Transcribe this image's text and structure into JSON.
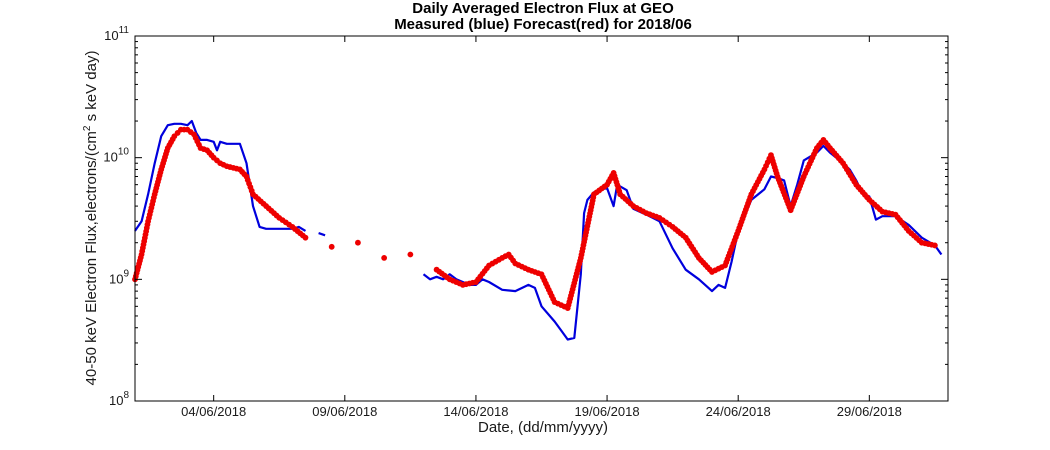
{
  "chart_data": {
    "type": "line",
    "title": "Daily Averaged Electron Flux at GEO",
    "subtitle": "Measured (blue) Forecast(red) for 2018/06",
    "xlabel": "Date, (dd/mm/yyyy)",
    "ylabel": "40-50 keV Electron Flux,electrons/(cm",
    "ylabel_superscript": "2",
    "ylabel_suffix": " s keV day)",
    "y_scale": "log",
    "ylim": [
      100000000.0,
      100000000000.0
    ],
    "xlim": [
      "2018-06-01",
      "2018-07-02"
    ],
    "xticks": [
      {
        "date": "2018-06-04",
        "label": "04/06/2018"
      },
      {
        "date": "2018-06-09",
        "label": "09/06/2018"
      },
      {
        "date": "2018-06-14",
        "label": "14/06/2018"
      },
      {
        "date": "2018-06-19",
        "label": "19/06/2018"
      },
      {
        "date": "2018-06-24",
        "label": "24/06/2018"
      },
      {
        "date": "2018-06-29",
        "label": "29/06/2018"
      }
    ],
    "yticks": [
      {
        "value": 100000000.0,
        "base": "10",
        "exp": "8"
      },
      {
        "value": 1000000000.0,
        "base": "10",
        "exp": "9"
      },
      {
        "value": 10000000000.0,
        "base": "10",
        "exp": "10"
      },
      {
        "value": 100000000000.0,
        "base": "10",
        "exp": "11"
      }
    ],
    "grid": false,
    "series": [
      {
        "name": "Measured",
        "color": "#0000dd",
        "style": "line",
        "segments": [
          [
            [
              "2018-06-01 00:00",
              2500000000.0
            ],
            [
              "2018-06-01 06:00",
              3000000000.0
            ],
            [
              "2018-06-01 12:00",
              5000000000.0
            ],
            [
              "2018-06-01 18:00",
              9000000000.0
            ],
            [
              "2018-06-02 00:00",
              15000000000.0
            ],
            [
              "2018-06-02 06:00",
              18500000000.0
            ],
            [
              "2018-06-02 12:00",
              19000000000.0
            ],
            [
              "2018-06-02 18:00",
              19000000000.0
            ],
            [
              "2018-06-03 00:00",
              18500000000.0
            ],
            [
              "2018-06-03 04:00",
              20000000000.0
            ],
            [
              "2018-06-03 08:00",
              16000000000.0
            ],
            [
              "2018-06-03 12:00",
              14000000000.0
            ],
            [
              "2018-06-03 18:00",
              14000000000.0
            ],
            [
              "2018-06-04 00:00",
              13500000000.0
            ],
            [
              "2018-06-04 03:00",
              11500000000.0
            ],
            [
              "2018-06-04 06:00",
              13500000000.0
            ],
            [
              "2018-06-04 12:00",
              13000000000.0
            ],
            [
              "2018-06-05 00:00",
              13000000000.0
            ],
            [
              "2018-06-05 06:00",
              9000000000.0
            ],
            [
              "2018-06-05 12:00",
              4000000000.0
            ],
            [
              "2018-06-05 18:00",
              2700000000.0
            ],
            [
              "2018-06-06 00:00",
              2600000000.0
            ],
            [
              "2018-06-06 12:00",
              2600000000.0
            ],
            [
              "2018-06-07 00:00",
              2600000000.0
            ],
            [
              "2018-06-07 06:00",
              2700000000.0
            ],
            [
              "2018-06-07 12:00",
              2500000000.0
            ]
          ],
          [
            [
              "2018-06-08 00:00",
              2400000000.0
            ],
            [
              "2018-06-08 06:00",
              2300000000.0
            ]
          ],
          [
            [
              "2018-06-12 00:00",
              1100000000.0
            ],
            [
              "2018-06-12 06:00",
              1000000000.0
            ],
            [
              "2018-06-12 12:00",
              1050000000.0
            ],
            [
              "2018-06-12 18:00",
              1000000000.0
            ],
            [
              "2018-06-13 00:00",
              1100000000.0
            ],
            [
              "2018-06-13 06:00",
              1000000000.0
            ],
            [
              "2018-06-13 12:00",
              950000000.0
            ],
            [
              "2018-06-13 18:00",
              900000000.0
            ],
            [
              "2018-06-14 00:00",
              900000000.0
            ],
            [
              "2018-06-14 06:00",
              1000000000.0
            ],
            [
              "2018-06-14 12:00",
              950000000.0
            ],
            [
              "2018-06-15 00:00",
              820000000.0
            ],
            [
              "2018-06-15 12:00",
              800000000.0
            ],
            [
              "2018-06-16 00:00",
              900000000.0
            ],
            [
              "2018-06-16 06:00",
              850000000.0
            ],
            [
              "2018-06-16 12:00",
              600000000.0
            ],
            [
              "2018-06-17 00:00",
              450000000.0
            ],
            [
              "2018-06-17 06:00",
              380000000.0
            ],
            [
              "2018-06-17 12:00",
              320000000.0
            ],
            [
              "2018-06-17 18:00",
              330000000.0
            ],
            [
              "2018-06-18 00:00",
              1100000000.0
            ],
            [
              "2018-06-18 03:00",
              3500000000.0
            ],
            [
              "2018-06-18 06:00",
              4500000000.0
            ],
            [
              "2018-06-18 12:00",
              5200000000.0
            ],
            [
              "2018-06-18 18:00",
              5500000000.0
            ],
            [
              "2018-06-19 00:00",
              5600000000.0
            ],
            [
              "2018-06-19 06:00",
              4000000000.0
            ],
            [
              "2018-06-19 09:00",
              5800000000.0
            ],
            [
              "2018-06-19 12:00",
              5800000000.0
            ],
            [
              "2018-06-19 18:00",
              5400000000.0
            ],
            [
              "2018-06-20 00:00",
              3800000000.0
            ],
            [
              "2018-06-20 12:00",
              3400000000.0
            ],
            [
              "2018-06-21 00:00",
              3000000000.0
            ],
            [
              "2018-06-21 12:00",
              1800000000.0
            ],
            [
              "2018-06-22 00:00",
              1200000000.0
            ],
            [
              "2018-06-22 12:00",
              1000000000.0
            ],
            [
              "2018-06-23 00:00",
              800000000.0
            ],
            [
              "2018-06-23 06:00",
              900000000.0
            ],
            [
              "2018-06-23 12:00",
              850000000.0
            ],
            [
              "2018-06-23 18:00",
              1400000000.0
            ],
            [
              "2018-06-24 00:00",
              2500000000.0
            ],
            [
              "2018-06-24 12:00",
              4500000000.0
            ],
            [
              "2018-06-25 00:00",
              5500000000.0
            ],
            [
              "2018-06-25 06:00",
              7000000000.0
            ],
            [
              "2018-06-25 12:00",
              6800000000.0
            ],
            [
              "2018-06-25 18:00",
              6500000000.0
            ],
            [
              "2018-06-26 00:00",
              4000000000.0
            ],
            [
              "2018-06-26 06:00",
              6000000000.0
            ],
            [
              "2018-06-26 12:00",
              9500000000.0
            ],
            [
              "2018-06-27 00:00",
              11000000000.0
            ],
            [
              "2018-06-27 06:00",
              12500000000.0
            ],
            [
              "2018-06-27 12:00",
              11000000000.0
            ],
            [
              "2018-06-28 00:00",
              9000000000.0
            ],
            [
              "2018-06-28 06:00",
              8000000000.0
            ],
            [
              "2018-06-28 12:00",
              6500000000.0
            ],
            [
              "2018-06-28 18:00",
              5000000000.0
            ],
            [
              "2018-06-29 00:00",
              4800000000.0
            ],
            [
              "2018-06-29 06:00",
              3100000000.0
            ],
            [
              "2018-06-29 12:00",
              3300000000.0
            ],
            [
              "2018-06-30 00:00",
              3300000000.0
            ],
            [
              "2018-06-30 12:00",
              2800000000.0
            ],
            [
              "2018-07-01 00:00",
              2200000000.0
            ],
            [
              "2018-07-01 12:00",
              1900000000.0
            ],
            [
              "2018-07-01 18:00",
              1600000000.0
            ]
          ]
        ]
      },
      {
        "name": "Forecast",
        "color": "#ee0000",
        "style": "markers",
        "points": [
          [
            "2018-06-01 00:00",
            1000000000.0
          ],
          [
            "2018-06-01 06:00",
            1600000000.0
          ],
          [
            "2018-06-01 12:00",
            3000000000.0
          ],
          [
            "2018-06-01 18:00",
            5000000000.0
          ],
          [
            "2018-06-02 00:00",
            8000000000.0
          ],
          [
            "2018-06-02 06:00",
            12000000000.0
          ],
          [
            "2018-06-02 12:00",
            15000000000.0
          ],
          [
            "2018-06-02 18:00",
            17000000000.0
          ],
          [
            "2018-06-03 00:00",
            17000000000.0
          ],
          [
            "2018-06-03 06:00",
            15500000000.0
          ],
          [
            "2018-06-03 12:00",
            12000000000.0
          ],
          [
            "2018-06-03 18:00",
            11500000000.0
          ],
          [
            "2018-06-04 00:00",
            10000000000.0
          ],
          [
            "2018-06-04 06:00",
            9000000000.0
          ],
          [
            "2018-06-04 12:00",
            8500000000.0
          ],
          [
            "2018-06-05 00:00",
            8000000000.0
          ],
          [
            "2018-06-05 06:00",
            7000000000.0
          ],
          [
            "2018-06-05 12:00",
            5000000000.0
          ],
          [
            "2018-06-06 00:00",
            4000000000.0
          ],
          [
            "2018-06-06 12:00",
            3200000000.0
          ],
          [
            "2018-06-07 00:00",
            2700000000.0
          ],
          [
            "2018-06-07 12:00",
            2200000000.0
          ],
          [
            "2018-06-08 12:00",
            1850000000.0
          ],
          [
            "2018-06-09 12:00",
            2000000000.0
          ],
          [
            "2018-06-10 12:00",
            1500000000.0
          ],
          [
            "2018-06-11 12:00",
            1600000000.0
          ],
          [
            "2018-06-12 12:00",
            1200000000.0
          ],
          [
            "2018-06-13 00:00",
            1000000000.0
          ],
          [
            "2018-06-13 12:00",
            900000000.0
          ],
          [
            "2018-06-14 00:00",
            950000000.0
          ],
          [
            "2018-06-14 12:00",
            1300000000.0
          ],
          [
            "2018-06-15 00:00",
            1500000000.0
          ],
          [
            "2018-06-15 06:00",
            1600000000.0
          ],
          [
            "2018-06-15 12:00",
            1350000000.0
          ],
          [
            "2018-06-16 00:00",
            1200000000.0
          ],
          [
            "2018-06-16 12:00",
            1100000000.0
          ],
          [
            "2018-06-17 00:00",
            650000000.0
          ],
          [
            "2018-06-17 12:00",
            580000000.0
          ],
          [
            "2018-06-18 00:00",
            1500000000.0
          ],
          [
            "2018-06-18 12:00",
            5000000000.0
          ],
          [
            "2018-06-19 00:00",
            6000000000.0
          ],
          [
            "2018-06-19 06:00",
            7500000000.0
          ],
          [
            "2018-06-19 12:00",
            5000000000.0
          ],
          [
            "2018-06-20 00:00",
            4000000000.0
          ],
          [
            "2018-06-20 12:00",
            3500000000.0
          ],
          [
            "2018-06-21 00:00",
            3200000000.0
          ],
          [
            "2018-06-21 12:00",
            2700000000.0
          ],
          [
            "2018-06-22 00:00",
            2200000000.0
          ],
          [
            "2018-06-22 12:00",
            1500000000.0
          ],
          [
            "2018-06-23 00:00",
            1150000000.0
          ],
          [
            "2018-06-23 12:00",
            1300000000.0
          ],
          [
            "2018-06-24 00:00",
            2500000000.0
          ],
          [
            "2018-06-24 12:00",
            5000000000.0
          ],
          [
            "2018-06-25 00:00",
            8000000000.0
          ],
          [
            "2018-06-25 06:00",
            10500000000.0
          ],
          [
            "2018-06-25 12:00",
            7000000000.0
          ],
          [
            "2018-06-26 00:00",
            3700000000.0
          ],
          [
            "2018-06-26 12:00",
            7000000000.0
          ],
          [
            "2018-06-27 00:00",
            12000000000.0
          ],
          [
            "2018-06-27 06:00",
            14000000000.0
          ],
          [
            "2018-06-27 12:00",
            12000000000.0
          ],
          [
            "2018-06-28 00:00",
            9000000000.0
          ],
          [
            "2018-06-28 12:00",
            6000000000.0
          ],
          [
            "2018-06-29 00:00",
            4500000000.0
          ],
          [
            "2018-06-29 12:00",
            3600000000.0
          ],
          [
            "2018-06-30 00:00",
            3400000000.0
          ],
          [
            "2018-06-30 12:00",
            2500000000.0
          ],
          [
            "2018-07-01 00:00",
            2000000000.0
          ],
          [
            "2018-07-01 12:00",
            1900000000.0
          ]
        ]
      }
    ]
  }
}
